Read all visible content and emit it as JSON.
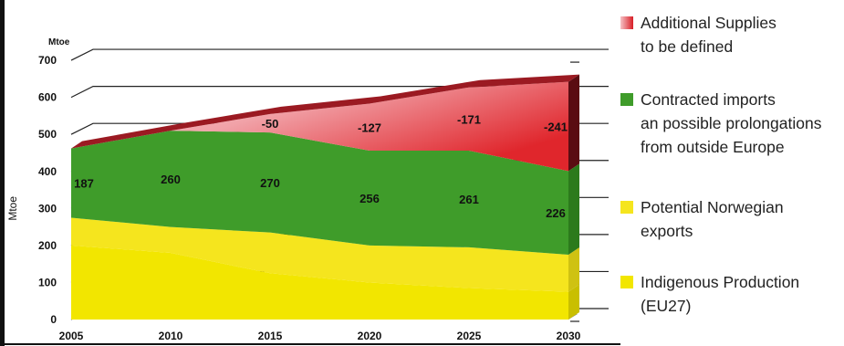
{
  "chart_data": {
    "type": "area",
    "stacked": true,
    "unit_label": "Mtoe",
    "ylabel": "Mtoe",
    "x": [
      2005,
      2010,
      2015,
      2020,
      2025,
      2030
    ],
    "ylim": [
      0,
      700
    ],
    "yticks": [
      0,
      100,
      200,
      300,
      400,
      500,
      600,
      700
    ],
    "series": [
      {
        "name": "Indigenous Production\n(EU27)",
        "values": [
          200,
          180,
          125,
          100,
          85,
          75
        ],
        "color": "#f2e600"
      },
      {
        "name": "Potential Norwegian\nexports",
        "values": [
          75,
          70,
          110,
          100,
          110,
          100
        ],
        "color": "#f5e51e"
      },
      {
        "name": "Contracted imports\nan possible prolongations\nfrom outside Europe",
        "values": [
          187,
          260,
          270,
          256,
          261,
          226
        ],
        "color": "#3f9c2a"
      },
      {
        "name": "Additional Supplies\nto be defined",
        "values": [
          0,
          0,
          50,
          127,
          171,
          241
        ],
        "color": "#e03a3e"
      }
    ],
    "top_band_color": "#9b1a22",
    "data_labels": [
      {
        "series": 2,
        "labels": [
          "187",
          "260",
          "270",
          "256",
          "261",
          "226"
        ]
      },
      {
        "series": 3,
        "labels": [
          "",
          "",
          "-50",
          "-127",
          "-171",
          "-241"
        ]
      }
    ],
    "legend_position": "right",
    "grid": true
  },
  "legend": [
    {
      "label": "Additional Supplies\nto be defined",
      "color": "#e03a3e"
    },
    {
      "label": "Contracted imports\nan possible prolongations\nfrom outside Europe",
      "color": "#3f9c2a"
    },
    {
      "label": "Potential Norwegian\nexports",
      "color": "#f5e51e"
    },
    {
      "label": "Indigenous Production\n(EU27)",
      "color": "#f2e600"
    }
  ]
}
